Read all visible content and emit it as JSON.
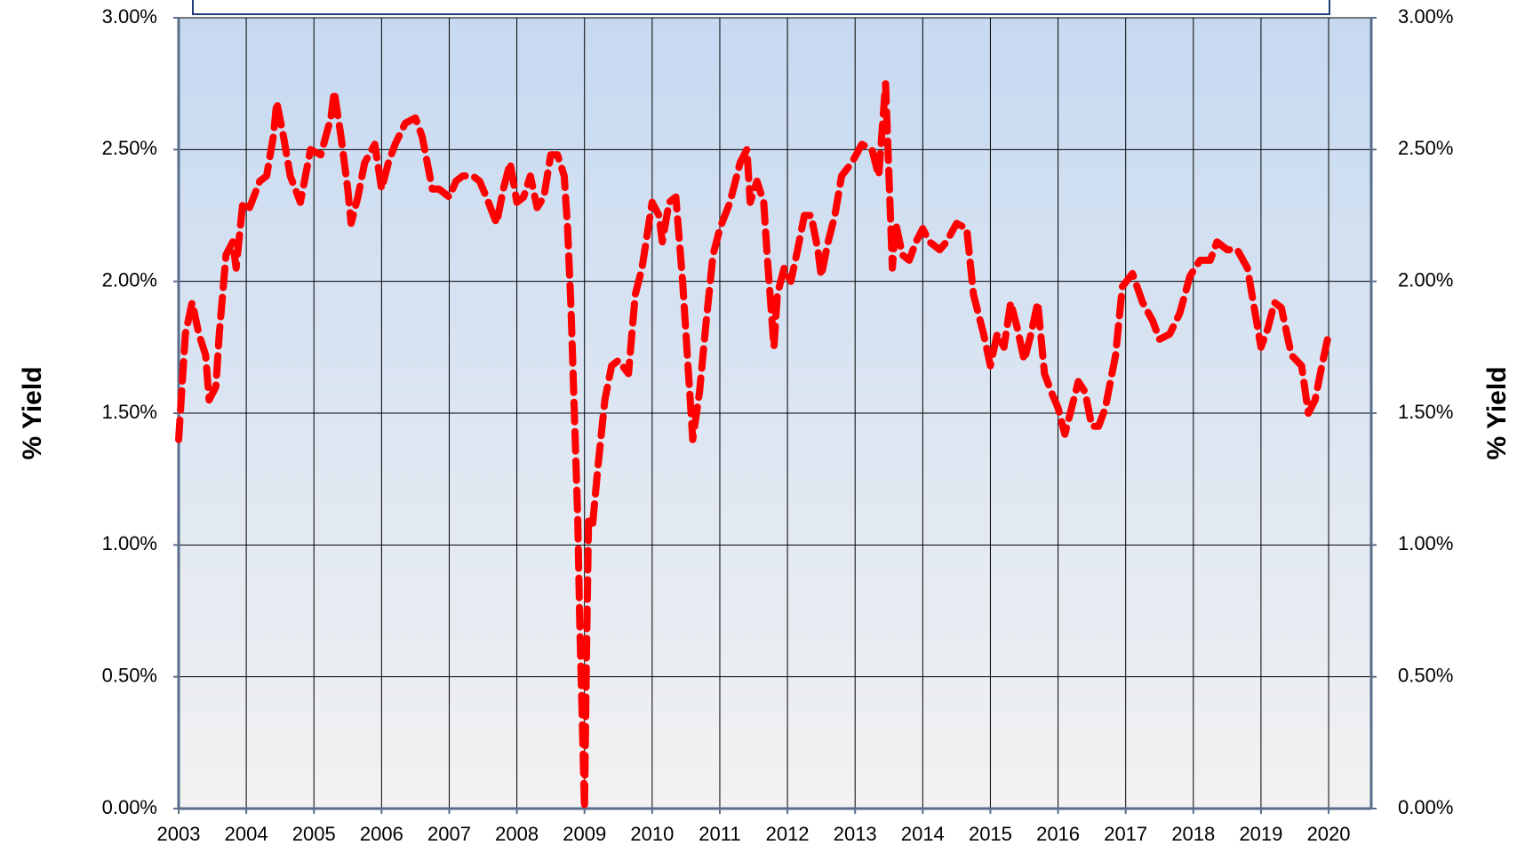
{
  "chart_data": {
    "type": "line",
    "y_label": "% Yield",
    "y2_label": "% Yield",
    "x": [
      2003.0,
      2003.05,
      2003.1,
      2003.2,
      2003.3,
      2003.4,
      2003.45,
      2003.55,
      2003.6,
      2003.7,
      2003.8,
      2003.85,
      2003.95,
      2004.05,
      2004.2,
      2004.3,
      2004.4,
      2004.45,
      2004.55,
      2004.65,
      2004.8,
      2004.95,
      2005.1,
      2005.25,
      2005.3,
      2005.4,
      2005.5,
      2005.55,
      2005.65,
      2005.75,
      2005.9,
      2006.0,
      2006.1,
      2006.2,
      2006.35,
      2006.5,
      2006.6,
      2006.75,
      2006.85,
      2007.0,
      2007.1,
      2007.2,
      2007.35,
      2007.45,
      2007.55,
      2007.7,
      2007.8,
      2007.9,
      2008.0,
      2008.1,
      2008.2,
      2008.3,
      2008.4,
      2008.5,
      2008.6,
      2008.7,
      2008.75,
      2008.8,
      2008.85,
      2008.9,
      2008.93,
      2008.96,
      2009.0,
      2009.03,
      2009.06,
      2009.12,
      2009.2,
      2009.3,
      2009.4,
      2009.5,
      2009.65,
      2009.75,
      2009.85,
      2010.0,
      2010.1,
      2010.15,
      2010.25,
      2010.35,
      2010.45,
      2010.55,
      2010.6,
      2010.7,
      2010.8,
      2010.9,
      2011.0,
      2011.15,
      2011.3,
      2011.4,
      2011.45,
      2011.55,
      2011.65,
      2011.7,
      2011.8,
      2011.85,
      2011.95,
      2012.05,
      2012.15,
      2012.25,
      2012.35,
      2012.45,
      2012.5,
      2012.6,
      2012.7,
      2012.8,
      2012.95,
      2013.1,
      2013.25,
      2013.35,
      2013.45,
      2013.5,
      2013.55,
      2013.6,
      2013.7,
      2013.8,
      2013.9,
      2014.0,
      2014.1,
      2014.25,
      2014.35,
      2014.5,
      2014.65,
      2014.75,
      2014.9,
      2015.0,
      2015.1,
      2015.2,
      2015.3,
      2015.4,
      2015.5,
      2015.6,
      2015.7,
      2015.8,
      2015.9,
      2016.0,
      2016.1,
      2016.2,
      2016.3,
      2016.4,
      2016.5,
      2016.6,
      2016.7,
      2016.85,
      2016.95,
      2017.1,
      2017.25,
      2017.4,
      2017.5,
      2017.65,
      2017.8,
      2017.95,
      2018.1,
      2018.25,
      2018.35,
      2018.5,
      2018.65,
      2018.8,
      2018.9,
      2019.0,
      2019.1,
      2019.2,
      2019.3,
      2019.45,
      2019.6,
      2019.7,
      2019.8,
      2019.9,
      2020.0
    ],
    "series": [
      {
        "color": "#ff0000",
        "values": [
          1.4,
          1.6,
          1.8,
          1.92,
          1.8,
          1.72,
          1.55,
          1.6,
          1.8,
          2.1,
          2.15,
          2.05,
          2.3,
          2.28,
          2.38,
          2.4,
          2.55,
          2.68,
          2.55,
          2.4,
          2.3,
          2.5,
          2.48,
          2.62,
          2.72,
          2.55,
          2.35,
          2.22,
          2.32,
          2.45,
          2.52,
          2.35,
          2.45,
          2.52,
          2.6,
          2.62,
          2.55,
          2.35,
          2.35,
          2.32,
          2.38,
          2.4,
          2.4,
          2.38,
          2.32,
          2.22,
          2.35,
          2.45,
          2.3,
          2.32,
          2.4,
          2.28,
          2.32,
          2.48,
          2.48,
          2.4,
          2.2,
          1.9,
          1.5,
          1.1,
          0.7,
          0.4,
          0.0,
          0.6,
          1.1,
          1.08,
          1.3,
          1.55,
          1.68,
          1.7,
          1.65,
          1.95,
          2.05,
          2.3,
          2.25,
          2.15,
          2.3,
          2.32,
          2.0,
          1.6,
          1.4,
          1.58,
          1.85,
          2.1,
          2.2,
          2.3,
          2.45,
          2.5,
          2.3,
          2.38,
          2.3,
          2.1,
          1.75,
          1.95,
          2.05,
          2.0,
          2.12,
          2.25,
          2.25,
          2.12,
          2.02,
          2.15,
          2.25,
          2.4,
          2.45,
          2.52,
          2.5,
          2.4,
          2.75,
          2.4,
          2.05,
          2.22,
          2.1,
          2.08,
          2.15,
          2.2,
          2.15,
          2.12,
          2.15,
          2.22,
          2.2,
          1.95,
          1.8,
          1.68,
          1.8,
          1.75,
          1.92,
          1.82,
          1.7,
          1.8,
          1.92,
          1.65,
          1.58,
          1.52,
          1.42,
          1.52,
          1.62,
          1.58,
          1.45,
          1.45,
          1.52,
          1.72,
          1.98,
          2.03,
          1.92,
          1.85,
          1.78,
          1.8,
          1.88,
          2.02,
          2.08,
          2.08,
          2.15,
          2.12,
          2.12,
          2.05,
          1.9,
          1.75,
          1.82,
          1.92,
          1.9,
          1.72,
          1.68,
          1.5,
          1.55,
          1.68,
          1.8
        ]
      }
    ],
    "xlim": [
      2003,
      2020.63
    ],
    "xticks": [
      2003,
      2004,
      2005,
      2006,
      2007,
      2008,
      2009,
      2010,
      2011,
      2012,
      2013,
      2014,
      2015,
      2016,
      2017,
      2018,
      2019,
      2020
    ],
    "ylim": [
      0,
      3
    ],
    "yticks": [
      {
        "value": 0,
        "label": "0.00%"
      },
      {
        "value": 0.5,
        "label": "0.50%"
      },
      {
        "value": 1,
        "label": "1.00%"
      },
      {
        "value": 1.5,
        "label": "1.50%"
      },
      {
        "value": 2,
        "label": "2.00%"
      },
      {
        "value": 2.5,
        "label": "2.50%"
      },
      {
        "value": 3,
        "label": "3.00%"
      }
    ],
    "y2lim": [
      0,
      3
    ],
    "y2ticks": [
      {
        "value": 0,
        "label": "0.00%"
      },
      {
        "value": 0.5,
        "label": "0.50%"
      },
      {
        "value": 1,
        "label": "1.00%"
      },
      {
        "value": 1.5,
        "label": "1.50%"
      },
      {
        "value": 2,
        "label": "2.00%"
      },
      {
        "value": 2.5,
        "label": "2.50%"
      },
      {
        "value": 3,
        "label": "3.00%"
      }
    ],
    "grid": true
  }
}
